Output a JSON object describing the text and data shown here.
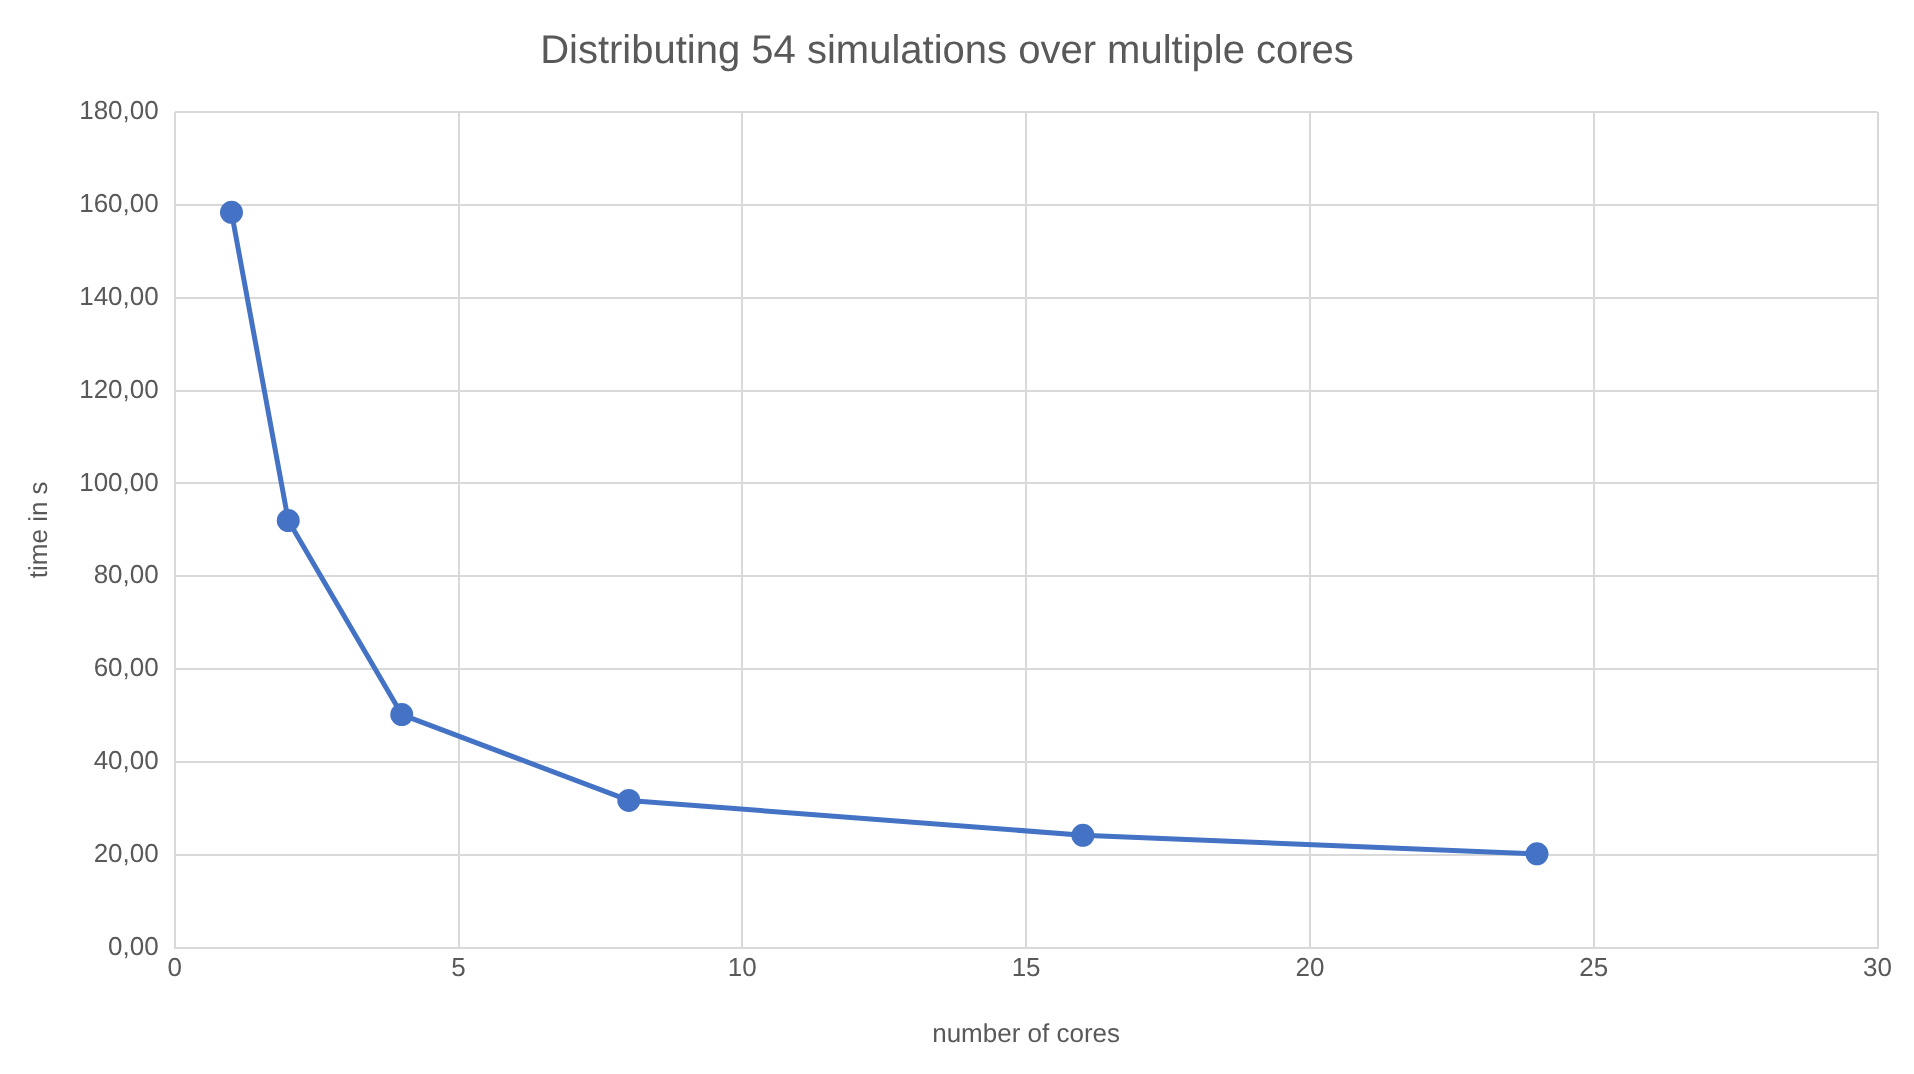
{
  "chart_data": {
    "type": "line",
    "title": "Distributing 54 simulations over multiple cores",
    "xlabel": "number of cores",
    "ylabel": "time in s",
    "x": [
      1,
      2,
      4,
      8,
      16,
      24
    ],
    "series": [
      {
        "color": "#4472c4",
        "values": [
          158.4,
          92,
          50.2,
          31.7,
          24.2,
          20.2
        ]
      }
    ],
    "xlim": [
      0,
      30
    ],
    "xticks": [
      0,
      5,
      10,
      15,
      20,
      25,
      30
    ],
    "ylim": [
      0,
      180
    ],
    "yticks": [
      {
        "value": 0,
        "label": "0,00"
      },
      {
        "value": 20,
        "label": "20,00"
      },
      {
        "value": 40,
        "label": "40,00"
      },
      {
        "value": 60,
        "label": "60,00"
      },
      {
        "value": 80,
        "label": "80,00"
      },
      {
        "value": 100,
        "label": "100,00"
      },
      {
        "value": 120,
        "label": "120,00"
      },
      {
        "value": 140,
        "label": "140,00"
      },
      {
        "value": 160,
        "label": "160,00"
      },
      {
        "value": 180,
        "label": "180,00"
      }
    ],
    "grid": true,
    "marker": "circle",
    "line_style": "solid",
    "legend": false
  }
}
